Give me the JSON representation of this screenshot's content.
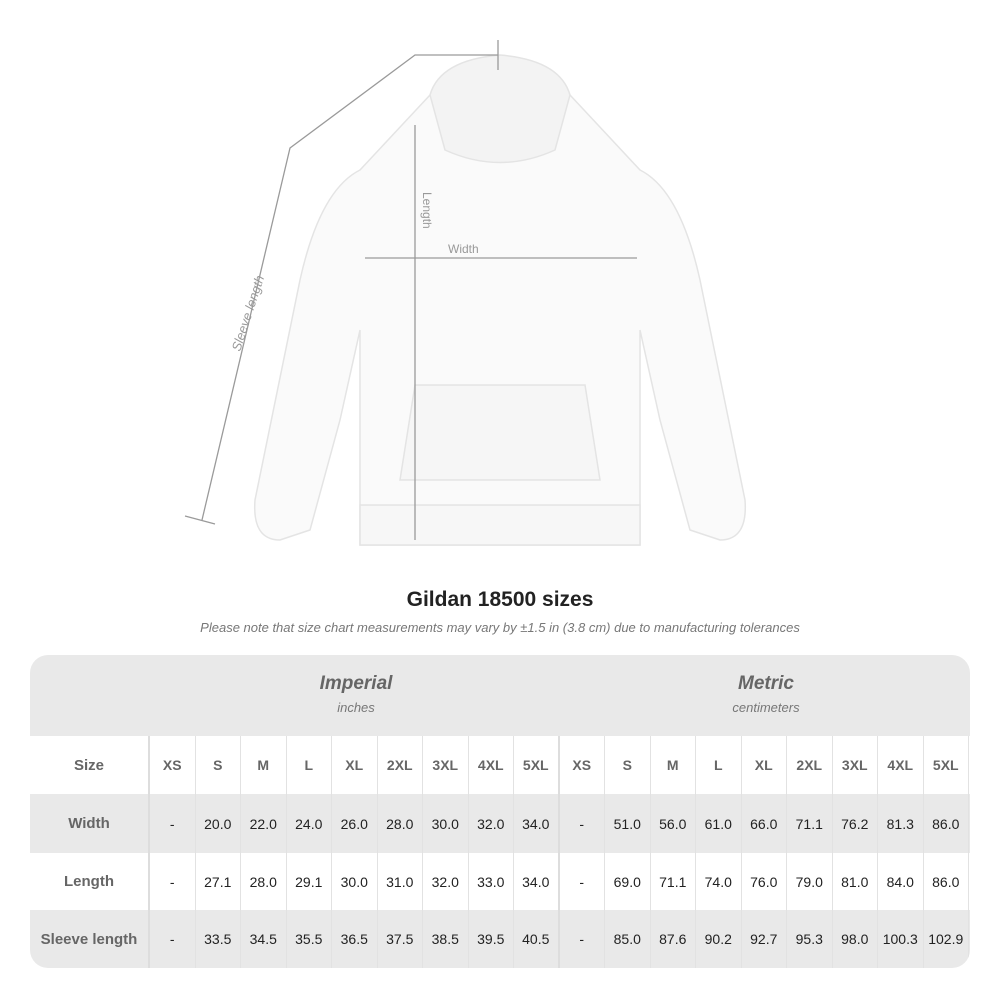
{
  "illustration": {
    "labels": {
      "sleeve": "Sleeve length",
      "length": "Length",
      "width": "Width"
    }
  },
  "title": "Gildan 18500 sizes",
  "note": "Please note that size chart measurements may vary by ±1.5 in (3.8 cm) due to manufacturing tolerances",
  "table": {
    "imperial": {
      "name": "Imperial",
      "unit": "inches"
    },
    "metric": {
      "name": "Metric",
      "unit": "centimeters"
    },
    "sizes": [
      "XS",
      "S",
      "M",
      "L",
      "XL",
      "2XL",
      "3XL",
      "4XL",
      "5XL"
    ],
    "rows": [
      {
        "label": "Size"
      },
      {
        "label": "Width",
        "imperial": [
          "-",
          "20.0",
          "22.0",
          "24.0",
          "26.0",
          "28.0",
          "30.0",
          "32.0",
          "34.0"
        ],
        "metric": [
          "-",
          "51.0",
          "56.0",
          "61.0",
          "66.0",
          "71.1",
          "76.2",
          "81.3",
          "86.0"
        ]
      },
      {
        "label": "Length",
        "imperial": [
          "-",
          "27.1",
          "28.0",
          "29.1",
          "30.0",
          "31.0",
          "32.0",
          "33.0",
          "34.0"
        ],
        "metric": [
          "-",
          "69.0",
          "71.1",
          "74.0",
          "76.0",
          "79.0",
          "81.0",
          "84.0",
          "86.0"
        ]
      },
      {
        "label": "Sleeve length",
        "imperial": [
          "-",
          "33.5",
          "34.5",
          "35.5",
          "36.5",
          "37.5",
          "38.5",
          "39.5",
          "40.5"
        ],
        "metric": [
          "-",
          "85.0",
          "87.6",
          "90.2",
          "92.7",
          "95.3",
          "98.0",
          "100.3",
          "102.9"
        ]
      }
    ]
  }
}
